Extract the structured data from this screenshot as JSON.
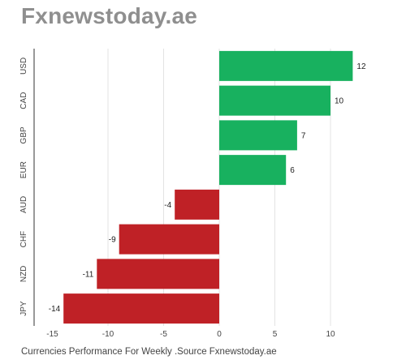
{
  "header": {
    "title": "Fxnewstoday.ae"
  },
  "footer": {
    "caption": "Currencies Performance For Weekly .Source Fxnewstoday.ae"
  },
  "colors": {
    "positive": "#18b15f",
    "negative": "#bf2126",
    "grid": "#e3e3e3",
    "axis": "#555555"
  },
  "chart_data": {
    "type": "bar",
    "orientation": "horizontal",
    "categories": [
      "USD",
      "CAD",
      "GBP",
      "EUR",
      "AUD",
      "CHF",
      "NZD",
      "JPY"
    ],
    "values": [
      12,
      10,
      7,
      6,
      -4,
      -9,
      -11,
      -14
    ],
    "xlim": [
      -15,
      12.5
    ],
    "xticks": [
      -15,
      -10,
      -5,
      0,
      5,
      10
    ],
    "grid": true,
    "legend": "none"
  }
}
